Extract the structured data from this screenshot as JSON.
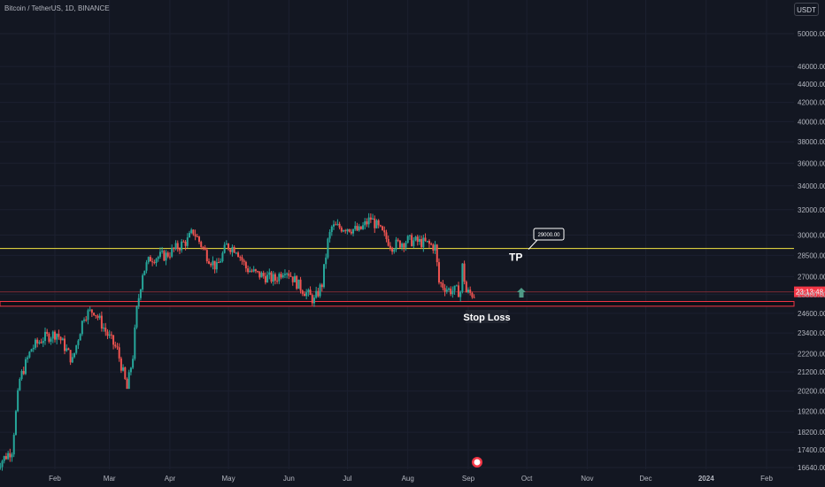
{
  "header": {
    "symbol_title": "Bitcoin / TetherUS, 1D, BINANCE",
    "currency_label": "USDT"
  },
  "colors": {
    "background": "#131722",
    "up": "#26a69a",
    "down": "#ef5350",
    "tp_line": "#f5e642",
    "sl_zone": "#f23645",
    "axis_text": "#b2b5be",
    "price_label_bg": "#f23645"
  },
  "chart_data": {
    "type": "candlestick",
    "title": "Bitcoin / TetherUS, 1D, BINANCE",
    "y_scale": "log",
    "ylim": [
      16400,
      53500
    ],
    "y_ticks": [
      "50000.00",
      "46000.00",
      "44000.00",
      "42000.00",
      "40000.00",
      "38000.00",
      "36000.00",
      "34000.00",
      "32000.00",
      "30000.00",
      "28500.00",
      "27000.00",
      "25800.00",
      "24600.00",
      "23400.00",
      "22200.00",
      "21200.00",
      "20200.00",
      "19200.00",
      "18200.00",
      "17400.00",
      "16640.00"
    ],
    "x_tick_labels": [
      "Feb",
      "Mar",
      "Apr",
      "May",
      "Jun",
      "Jul",
      "Aug",
      "Sep",
      "Oct",
      "Nov",
      "Dec",
      "2024",
      "Feb"
    ],
    "price_path": [
      {
        "date": "2023-01-02",
        "close": 16700
      },
      {
        "date": "2023-01-10",
        "close": 17400
      },
      {
        "date": "2023-01-14",
        "close": 20800
      },
      {
        "date": "2023-01-20",
        "close": 22500
      },
      {
        "date": "2023-01-26",
        "close": 23100
      },
      {
        "date": "2023-02-02",
        "close": 23400
      },
      {
        "date": "2023-02-10",
        "close": 21800
      },
      {
        "date": "2023-02-16",
        "close": 24500
      },
      {
        "date": "2023-02-21",
        "close": 24800
      },
      {
        "date": "2023-02-28",
        "close": 23300
      },
      {
        "date": "2023-03-05",
        "close": 22400
      },
      {
        "date": "2023-03-10",
        "close": 20300
      },
      {
        "date": "2023-03-13",
        "close": 22100
      },
      {
        "date": "2023-03-15",
        "close": 24800
      },
      {
        "date": "2023-03-18",
        "close": 27300
      },
      {
        "date": "2023-03-22",
        "close": 28300
      },
      {
        "date": "2023-03-30",
        "close": 28500
      },
      {
        "date": "2023-04-10",
        "close": 29600
      },
      {
        "date": "2023-04-13",
        "close": 30300
      },
      {
        "date": "2023-04-20",
        "close": 28500
      },
      {
        "date": "2023-04-25",
        "close": 27600
      },
      {
        "date": "2023-04-30",
        "close": 29200
      },
      {
        "date": "2023-05-05",
        "close": 29000
      },
      {
        "date": "2023-05-10",
        "close": 27600
      },
      {
        "date": "2023-05-15",
        "close": 27200
      },
      {
        "date": "2023-05-25",
        "close": 26800
      },
      {
        "date": "2023-05-30",
        "close": 27600
      },
      {
        "date": "2023-06-06",
        "close": 26400
      },
      {
        "date": "2023-06-14",
        "close": 25400
      },
      {
        "date": "2023-06-18",
        "close": 26500
      },
      {
        "date": "2023-06-21",
        "close": 29500
      },
      {
        "date": "2023-06-23",
        "close": 30600
      },
      {
        "date": "2023-07-01",
        "close": 30600
      },
      {
        "date": "2023-07-07",
        "close": 30300
      },
      {
        "date": "2023-07-13",
        "close": 31300
      },
      {
        "date": "2023-07-20",
        "close": 29900
      },
      {
        "date": "2023-07-24",
        "close": 29200
      },
      {
        "date": "2023-08-01",
        "close": 29600
      },
      {
        "date": "2023-08-10",
        "close": 29400
      },
      {
        "date": "2023-08-15",
        "close": 29100
      },
      {
        "date": "2023-08-17",
        "close": 26600
      },
      {
        "date": "2023-08-22",
        "close": 26100
      },
      {
        "date": "2023-08-28",
        "close": 26000
      },
      {
        "date": "2023-08-29",
        "close": 27700
      },
      {
        "date": "2023-08-31",
        "close": 25950
      },
      {
        "date": "2023-09-04",
        "close": 25800
      }
    ],
    "levels": [
      {
        "kind": "take-profit-line",
        "price": 29000
      },
      {
        "kind": "current-price-line",
        "price": 25980
      },
      {
        "kind": "stop-loss-zone",
        "from": 25050,
        "to": 25350
      }
    ],
    "annotations": {
      "tp_label": "TP",
      "tp_price_callout": "29000.00",
      "stop_loss_label": "Stop Loss",
      "price_countdown": "23:13:48"
    }
  }
}
